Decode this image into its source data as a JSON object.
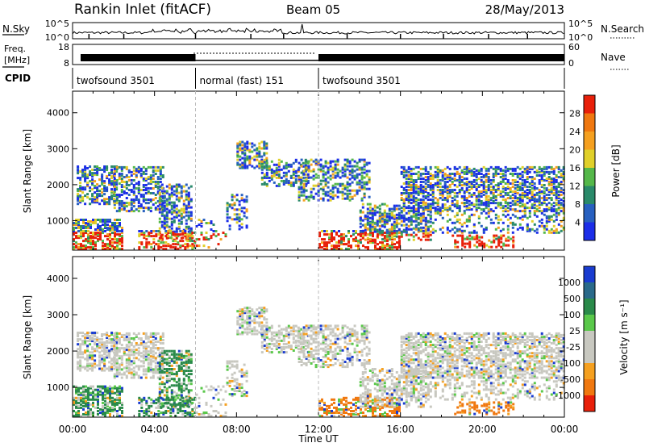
{
  "header": {
    "station": "Rankin Inlet (fitACF)",
    "beam": "Beam 05",
    "date": "28/May/2013"
  },
  "sky_panel": {
    "left_label": "N.Sky",
    "right_label": "N.Search",
    "left_ticks": [
      "10^5",
      "10^0"
    ],
    "right_ticks": [
      "10^5",
      "10^0"
    ]
  },
  "freq_panel": {
    "left_label_1": "Freq.",
    "left_label_2": "[MHz]",
    "right_label": "Nave",
    "left_ticks": [
      "18",
      "8"
    ],
    "right_ticks": [
      "60",
      "0"
    ]
  },
  "cpid": {
    "label": "CPID",
    "segments": [
      {
        "name": "twofsound 3501",
        "start_hour": 0,
        "end_hour": 6
      },
      {
        "name": "normal (fast) 151",
        "start_hour": 6,
        "end_hour": 12
      },
      {
        "name": "twofsound 3501",
        "start_hour": 12,
        "end_hour": 24
      }
    ]
  },
  "chart_data": [
    {
      "type": "heatmap",
      "ylabel": "Slant Range [km]",
      "xlim": [
        0,
        24
      ],
      "ylim": [
        180,
        4600
      ],
      "yticks": [
        "1000",
        "2000",
        "3000",
        "4000"
      ],
      "colorbar": {
        "label": "Power [dB]",
        "ticks": [
          "4",
          "8",
          "12",
          "16",
          "20",
          "24",
          "28"
        ],
        "colors": [
          "#1c2ee8",
          "#2860c0",
          "#2a8a6a",
          "#55b84a",
          "#e0d02a",
          "#f5a020",
          "#f07810",
          "#e8200a"
        ]
      }
    },
    {
      "type": "heatmap",
      "ylabel": "Slant Range [km]",
      "xlabel": "Time UT",
      "xlim": [
        0,
        24
      ],
      "ylim": [
        180,
        4600
      ],
      "yticks": [
        "1000",
        "2000",
        "3000",
        "4000"
      ],
      "xticks": [
        "00:00",
        "04:00",
        "08:00",
        "12:00",
        "16:00",
        "20:00",
        "00:00"
      ],
      "colorbar": {
        "label": "Velocity  [m s⁻¹]",
        "ticks": [
          "1000",
          "500",
          "100",
          "25",
          "-25",
          "-100",
          "-500",
          "-1000"
        ],
        "colors": [
          "#1a3cd0",
          "#2a6a8a",
          "#2a8a4a",
          "#5ac84a",
          "#c8c8c0",
          "#c8c8c0",
          "#f5a020",
          "#f07810",
          "#e8200a"
        ]
      }
    }
  ]
}
